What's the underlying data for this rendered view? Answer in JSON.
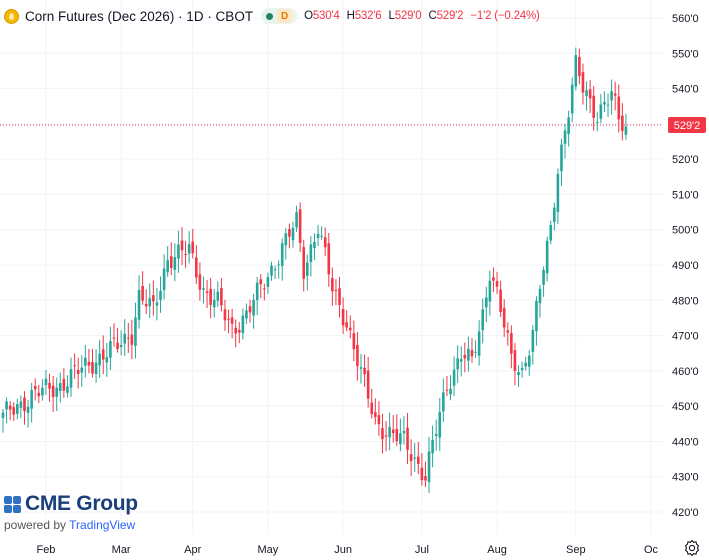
{
  "legend": {
    "title": "Corn Futures (Dec 2026) · 1D · CBOT",
    "market_badge": "D",
    "ohlc": [
      {
        "key": "O",
        "value": "530'4"
      },
      {
        "key": "H",
        "value": "532'6"
      },
      {
        "key": "L",
        "value": "529'0"
      },
      {
        "key": "C",
        "value": "529'2"
      },
      {
        "key": "",
        "value": "−1'2 (−0.24%)"
      }
    ]
  },
  "price_axis": {
    "labels": [
      "560'0",
      "550'0",
      "540'0",
      "530'0",
      "520'0",
      "510'0",
      "500'0",
      "490'0",
      "480'0",
      "470'0",
      "460'0",
      "450'0",
      "440'0",
      "430'0",
      "420'0"
    ],
    "current_price_label": "529'2"
  },
  "time_axis": {
    "labels": [
      "Feb",
      "Mar",
      "Apr",
      "May",
      "Jun",
      "Jul",
      "Aug",
      "Sep",
      "Oc"
    ]
  },
  "branding": {
    "logo_text": "CME Group",
    "powered_by": "powered by",
    "powered_name": "TradingView"
  },
  "colors": {
    "up": "#26a69a",
    "down": "#f23645",
    "grid": "#f0f3fa"
  },
  "chart_data": {
    "type": "candlestick",
    "ylim": [
      420,
      560
    ],
    "price_labels": [
      560,
      550,
      540,
      530,
      520,
      510,
      500,
      490,
      480,
      470,
      460,
      450,
      440,
      430,
      420
    ],
    "current_price": 529.25,
    "x_labels": [
      "Feb",
      "Mar",
      "Apr",
      "May",
      "Jun",
      "Jul",
      "Aug",
      "Sep",
      "Oc"
    ],
    "close_waypoints": [
      [
        0,
        447
      ],
      [
        8,
        453
      ],
      [
        16,
        456
      ],
      [
        24,
        462
      ],
      [
        32,
        467
      ],
      [
        36,
        471
      ],
      [
        38,
        481
      ],
      [
        42,
        477
      ],
      [
        46,
        492
      ],
      [
        52,
        494
      ],
      [
        56,
        483
      ],
      [
        60,
        479
      ],
      [
        64,
        472
      ],
      [
        68,
        476
      ],
      [
        74,
        487
      ],
      [
        78,
        495
      ],
      [
        82,
        502
      ],
      [
        84,
        489
      ],
      [
        88,
        501
      ],
      [
        92,
        483
      ],
      [
        96,
        474
      ],
      [
        100,
        459
      ],
      [
        104,
        446
      ],
      [
        108,
        442
      ],
      [
        112,
        440
      ],
      [
        114,
        437
      ],
      [
        118,
        430
      ],
      [
        121,
        443
      ],
      [
        124,
        456
      ],
      [
        128,
        465
      ],
      [
        131,
        462
      ],
      [
        134,
        476
      ],
      [
        136,
        489
      ],
      [
        138,
        482
      ],
      [
        142,
        463
      ],
      [
        145,
        460
      ],
      [
        148,
        471
      ],
      [
        151,
        489
      ],
      [
        153,
        500
      ],
      [
        155,
        518
      ],
      [
        158,
        534
      ],
      [
        160,
        546
      ],
      [
        162,
        540
      ],
      [
        166,
        533
      ],
      [
        170,
        538
      ],
      [
        172,
        531
      ],
      [
        174,
        529.25
      ]
    ]
  }
}
